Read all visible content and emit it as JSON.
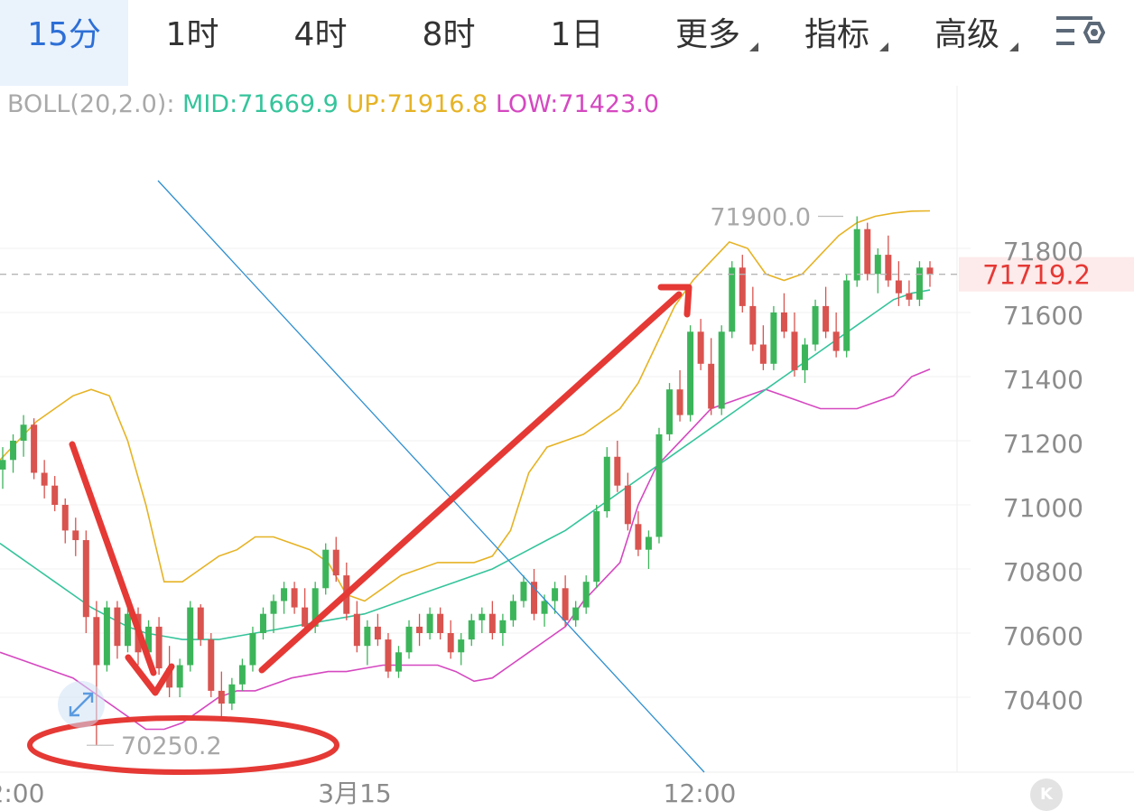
{
  "tabs": [
    {
      "label": "15分",
      "active": true,
      "dropdown": false
    },
    {
      "label": "1时",
      "active": false,
      "dropdown": false
    },
    {
      "label": "4时",
      "active": false,
      "dropdown": false
    },
    {
      "label": "8时",
      "active": false,
      "dropdown": false
    },
    {
      "label": "1日",
      "active": false,
      "dropdown": false
    },
    {
      "label": "更多",
      "active": false,
      "dropdown": true
    },
    {
      "label": "指标",
      "active": false,
      "dropdown": true
    },
    {
      "label": "高级",
      "active": false,
      "dropdown": true
    }
  ],
  "settings_icon": "chart-settings-icon",
  "indicator": {
    "name": "BOLL(20,2.0):",
    "mid": "MID:71669.9",
    "up": "UP:71916.8",
    "low": "LOW:71423.0"
  },
  "colors": {
    "up_candle": "#3cb55a",
    "down_candle": "#d9534f",
    "mid": "#35c49b",
    "upper": "#e6b325",
    "lower": "#d548c0",
    "trendline": "#2e8fd0",
    "annotation": "#e53935",
    "current_price": "#e53935",
    "active_tab": "#2d6fd6"
  },
  "chart_data": {
    "type": "candlestick",
    "interval": "15分",
    "y_ticks": [
      71800,
      71600,
      71400,
      71200,
      71000,
      70800,
      70600,
      70400
    ],
    "ylim": [
      70200,
      72000
    ],
    "x_ticks": [
      "2:00",
      "3月15",
      "12:00"
    ],
    "current_price": "71719.2",
    "max_label": "71900.0",
    "min_label": "70250.2",
    "candles": [
      [
        71110,
        71180,
        71050,
        71140
      ],
      [
        71140,
        71220,
        71100,
        71200
      ],
      [
        71200,
        71280,
        71150,
        71250
      ],
      [
        71250,
        71270,
        71080,
        71100
      ],
      [
        71100,
        71140,
        71020,
        71060
      ],
      [
        71060,
        71090,
        70980,
        71000
      ],
      [
        71000,
        71020,
        70880,
        70920
      ],
      [
        70920,
        70960,
        70840,
        70890
      ],
      [
        70890,
        70920,
        70600,
        70650
      ],
      [
        70650,
        70700,
        70250,
        70500
      ],
      [
        70500,
        70700,
        70480,
        70680
      ],
      [
        70680,
        70700,
        70520,
        70560
      ],
      [
        70560,
        70680,
        70540,
        70660
      ],
      [
        70660,
        70680,
        70500,
        70540
      ],
      [
        70540,
        70640,
        70520,
        70620
      ],
      [
        70620,
        70650,
        70470,
        70490
      ],
      [
        70490,
        70560,
        70400,
        70430
      ],
      [
        70430,
        70520,
        70400,
        70500
      ],
      [
        70500,
        70700,
        70480,
        70680
      ],
      [
        70680,
        70690,
        70560,
        70580
      ],
      [
        70580,
        70600,
        70400,
        70420
      ],
      [
        70420,
        70480,
        70340,
        70380
      ],
      [
        70380,
        70460,
        70360,
        70440
      ],
      [
        70440,
        70520,
        70420,
        70500
      ],
      [
        70500,
        70620,
        70480,
        70600
      ],
      [
        70600,
        70680,
        70580,
        70660
      ],
      [
        70660,
        70720,
        70600,
        70700
      ],
      [
        70700,
        70760,
        70660,
        70740
      ],
      [
        70740,
        70760,
        70660,
        70680
      ],
      [
        70680,
        70740,
        70600,
        70620
      ],
      [
        70620,
        70760,
        70600,
        70740
      ],
      [
        70740,
        70880,
        70720,
        70860
      ],
      [
        70860,
        70900,
        70760,
        70780
      ],
      [
        70780,
        70820,
        70640,
        70660
      ],
      [
        70660,
        70700,
        70540,
        70560
      ],
      [
        70560,
        70640,
        70500,
        70620
      ],
      [
        70620,
        70660,
        70560,
        70580
      ],
      [
        70580,
        70600,
        70460,
        70480
      ],
      [
        70480,
        70560,
        70460,
        70540
      ],
      [
        70540,
        70640,
        70520,
        70620
      ],
      [
        70620,
        70660,
        70560,
        70600
      ],
      [
        70600,
        70680,
        70580,
        70660
      ],
      [
        70660,
        70680,
        70580,
        70600
      ],
      [
        70600,
        70640,
        70520,
        70540
      ],
      [
        70540,
        70600,
        70500,
        70580
      ],
      [
        70580,
        70660,
        70560,
        70640
      ],
      [
        70640,
        70680,
        70600,
        70660
      ],
      [
        70660,
        70700,
        70580,
        70600
      ],
      [
        70600,
        70660,
        70560,
        70640
      ],
      [
        70640,
        70720,
        70620,
        70700
      ],
      [
        70700,
        70780,
        70680,
        70760
      ],
      [
        70760,
        70800,
        70640,
        70660
      ],
      [
        70660,
        70720,
        70620,
        70700
      ],
      [
        70700,
        70760,
        70660,
        70740
      ],
      [
        70740,
        70780,
        70620,
        70640
      ],
      [
        70640,
        70700,
        70620,
        70680
      ],
      [
        70680,
        70780,
        70660,
        70760
      ],
      [
        70760,
        71000,
        70740,
        70980
      ],
      [
        70980,
        71180,
        70960,
        71150
      ],
      [
        71150,
        71200,
        71040,
        71060
      ],
      [
        71060,
        71100,
        70920,
        70940
      ],
      [
        70940,
        70980,
        70840,
        70860
      ],
      [
        70860,
        70920,
        70800,
        70900
      ],
      [
        70900,
        71240,
        70880,
        71220
      ],
      [
        71220,
        71380,
        71200,
        71360
      ],
      [
        71360,
        71420,
        71260,
        71280
      ],
      [
        71280,
        71560,
        71260,
        71540
      ],
      [
        71540,
        71580,
        71420,
        71440
      ],
      [
        71440,
        71520,
        71280,
        71300
      ],
      [
        71300,
        71560,
        71280,
        71540
      ],
      [
        71540,
        71760,
        71520,
        71740
      ],
      [
        71740,
        71780,
        71600,
        71620
      ],
      [
        71620,
        71680,
        71480,
        71500
      ],
      [
        71500,
        71560,
        71420,
        71440
      ],
      [
        71440,
        71620,
        71420,
        71600
      ],
      [
        71600,
        71660,
        71520,
        71540
      ],
      [
        71540,
        71600,
        71400,
        71420
      ],
      [
        71420,
        71520,
        71380,
        71500
      ],
      [
        71500,
        71640,
        71480,
        71620
      ],
      [
        71620,
        71680,
        71520,
        71540
      ],
      [
        71540,
        71600,
        71460,
        71480
      ],
      [
        71480,
        71720,
        71460,
        71700
      ],
      [
        71700,
        71900,
        71680,
        71860
      ],
      [
        71860,
        71880,
        71700,
        71720
      ],
      [
        71720,
        71800,
        71660,
        71780
      ],
      [
        71780,
        71840,
        71680,
        71700
      ],
      [
        71700,
        71760,
        71620,
        71660
      ],
      [
        71660,
        71700,
        71620,
        71640
      ],
      [
        71640,
        71760,
        71620,
        71740
      ],
      [
        71740,
        71760,
        71680,
        71719
      ]
    ],
    "bands": {
      "mid": [
        70880,
        70840,
        70800,
        70760,
        70720,
        70680,
        70650,
        70620,
        70600,
        70590,
        70580,
        70580,
        70580,
        70590,
        70600,
        70610,
        70620,
        70630,
        70640,
        70650,
        70660,
        70680,
        70700,
        70720,
        70740,
        70760,
        70780,
        70800,
        70830,
        70860,
        70890,
        70920,
        70960,
        71000,
        71040,
        71080,
        71120,
        71160,
        71200,
        71240,
        71280,
        71320,
        71360,
        71400,
        71440,
        71480,
        71520,
        71560,
        71600,
        71640,
        71660,
        71670
      ],
      "upper": [
        71140,
        71200,
        71260,
        71300,
        71340,
        71360,
        71340,
        71200,
        71000,
        70760,
        70760,
        70800,
        70840,
        70860,
        70900,
        70900,
        70880,
        70860,
        70820,
        70720,
        70700,
        70740,
        70780,
        70800,
        70820,
        70820,
        70820,
        70840,
        70920,
        71100,
        71180,
        71200,
        71220,
        71260,
        71300,
        71380,
        71500,
        71620,
        71700,
        71760,
        71820,
        71800,
        71720,
        71700,
        71720,
        71780,
        71840,
        71880,
        71900,
        71910,
        71916,
        71917
      ],
      "lower": [
        70540,
        70520,
        70500,
        70480,
        70460,
        70420,
        70380,
        70340,
        70300,
        70300,
        70320,
        70360,
        70400,
        70420,
        70420,
        70440,
        70460,
        70470,
        70480,
        70480,
        70490,
        70500,
        70500,
        70500,
        70500,
        70480,
        70450,
        70460,
        70500,
        70540,
        70580,
        70620,
        70700,
        70760,
        70820,
        71000,
        71120,
        71180,
        71240,
        71300,
        71320,
        71340,
        71360,
        71340,
        71320,
        71300,
        71300,
        71300,
        71320,
        71340,
        71400,
        71423
      ]
    },
    "annotations": [
      {
        "type": "arrow",
        "label": ""
      },
      {
        "type": "arrow",
        "label": ""
      },
      {
        "type": "ellipse",
        "label": ""
      },
      {
        "type": "trendline",
        "label": ""
      }
    ]
  }
}
